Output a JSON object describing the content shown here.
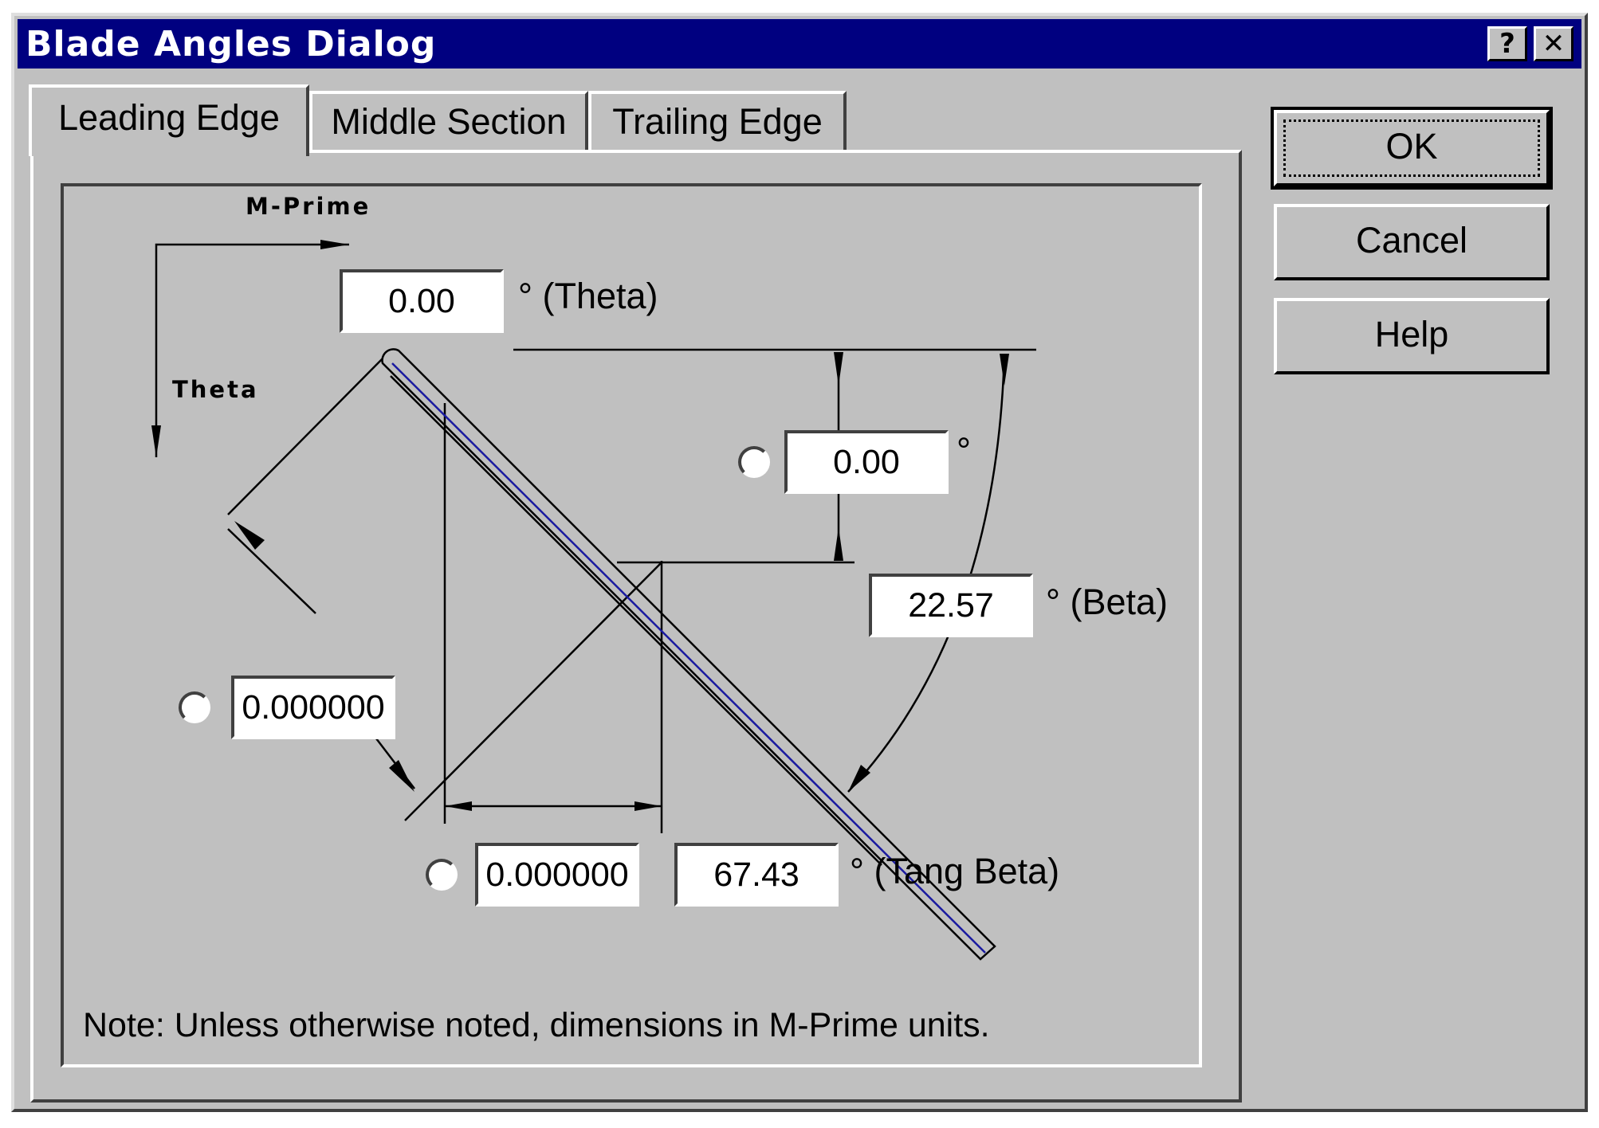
{
  "window": {
    "title": "Blade Angles Dialog",
    "help_glyph": "?",
    "close_glyph": "✕"
  },
  "tabs": [
    {
      "label": "Leading Edge",
      "active": true
    },
    {
      "label": "Middle Section",
      "active": false
    },
    {
      "label": "Trailing Edge",
      "active": false
    }
  ],
  "diagram": {
    "axis_m_prime": "M-Prime",
    "axis_theta": "Theta",
    "theta_field": {
      "value": "0.00",
      "unit_label": "° (Theta)"
    },
    "angle_field": {
      "value": "0.00",
      "unit_label": "°",
      "radio_selected": false
    },
    "beta_field": {
      "value": "22.57",
      "unit_label": "° (Beta)"
    },
    "normal_thickness_field": {
      "value": "0.000000",
      "radio_selected": false
    },
    "tangential_thickness_field": {
      "value": "0.000000",
      "radio_selected": false
    },
    "tang_beta_field": {
      "value": "67.43",
      "unit_label": "° (Tang Beta)"
    },
    "note": "Note: Unless otherwise noted, dimensions in M-Prime units."
  },
  "buttons": {
    "ok": "OK",
    "cancel": "Cancel",
    "help": "Help"
  },
  "colors": {
    "titlebar": "#000080",
    "face": "#c0c0c0",
    "camber_line": "#1a1aa0"
  }
}
